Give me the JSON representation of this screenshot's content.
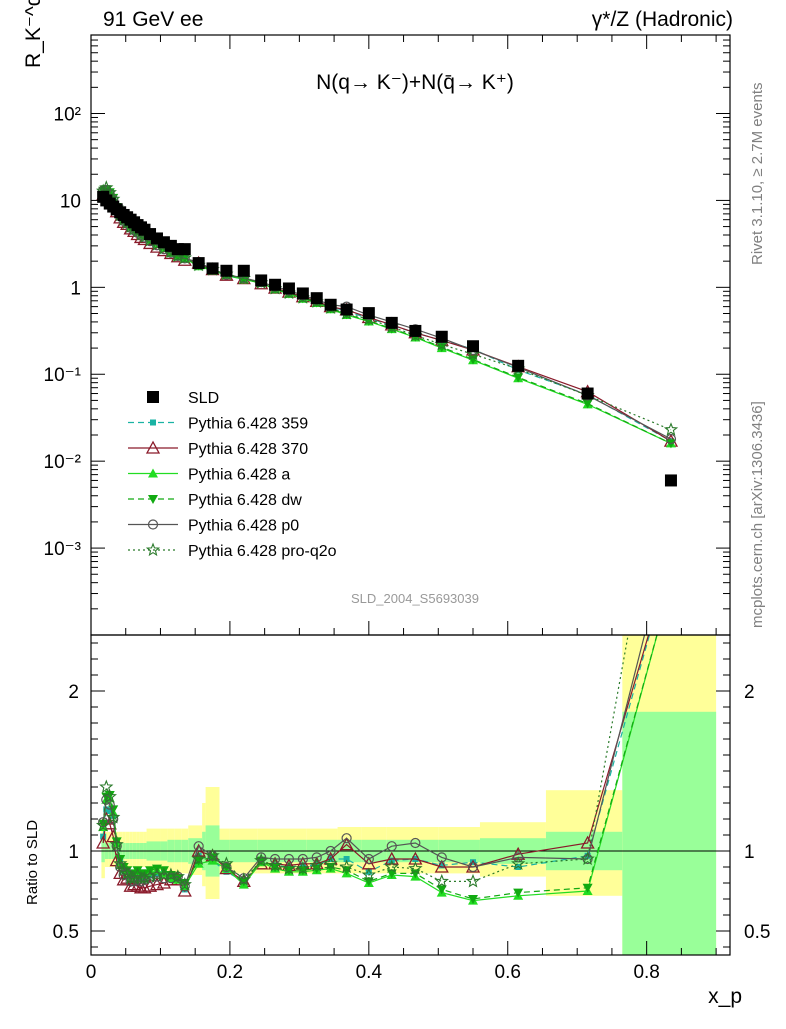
{
  "header": {
    "left_title": "91 GeV ee",
    "right_title": "γ*/Z (Hadronic)",
    "side_text_top": "Rivet 3.1.10, ≥ 2.7M events",
    "side_text_bottom": "mcplots.cern.ch [arXiv:1306.3436]"
  },
  "chart_data": [
    {
      "type": "scatter",
      "panel": "main",
      "title": "N(q→ K⁻)+N(q̄→ K⁺)",
      "ylabel": "R_K⁻^q",
      "yscale": "log",
      "ylim": [
        0.0001,
        800
      ],
      "xlim": [
        0,
        0.92
      ],
      "grid": false,
      "legend_position": "lower-left",
      "yticks": [
        {
          "value": 0.001,
          "label": "10⁻³"
        },
        {
          "value": 0.01,
          "label": "10⁻²"
        },
        {
          "value": 0.1,
          "label": "10⁻¹"
        },
        {
          "value": 1,
          "label": "1"
        },
        {
          "value": 10,
          "label": "10"
        },
        {
          "value": 100,
          "label": "10²"
        }
      ],
      "watermark": "SLD_2004_S5693039",
      "x": [
        0.0175,
        0.022,
        0.027,
        0.032,
        0.037,
        0.042,
        0.047,
        0.052,
        0.057,
        0.062,
        0.067,
        0.072,
        0.077,
        0.085,
        0.095,
        0.105,
        0.115,
        0.125,
        0.135,
        0.155,
        0.175,
        0.195,
        0.22,
        0.245,
        0.265,
        0.285,
        0.305,
        0.325,
        0.345,
        0.368,
        0.4,
        0.433,
        0.467,
        0.505,
        0.55,
        0.615,
        0.715,
        0.835
      ],
      "series": [
        {
          "name": "SLD",
          "color": "#000000",
          "marker": "square",
          "line": "none",
          "values": [
            11.0,
            10.0,
            9.2,
            8.5,
            7.9,
            7.3,
            6.8,
            6.4,
            6.0,
            5.6,
            5.2,
            4.9,
            4.6,
            4.1,
            3.65,
            3.3,
            3.0,
            2.75,
            2.75,
            1.9,
            1.65,
            1.55,
            1.55,
            1.2,
            1.07,
            0.97,
            0.85,
            0.75,
            0.63,
            0.555,
            0.505,
            0.39,
            0.315,
            0.27,
            0.21,
            0.125,
            0.06,
            0.006
          ]
        },
        {
          "name": "Pythia 6.428 359",
          "color": "#1ab3a4",
          "marker": "small-square",
          "line": "dashed",
          "values": [
            12.0,
            12.6,
            11.5,
            10.4,
            8.4,
            6.85,
            6.0,
            5.55,
            5.0,
            4.7,
            4.35,
            4.05,
            3.85,
            3.5,
            3.15,
            2.85,
            2.5,
            2.25,
            2.1,
            1.85,
            1.55,
            1.35,
            1.25,
            1.12,
            0.97,
            0.87,
            0.77,
            0.68,
            0.6,
            0.53,
            0.44,
            0.365,
            0.3,
            0.245,
            0.195,
            0.112,
            0.058,
            0.017
          ]
        },
        {
          "name": "Pythia 6.428 370",
          "color": "#8a1a2a",
          "marker": "open-triangle",
          "line": "solid",
          "values": [
            11.6,
            12.0,
            10.8,
            9.3,
            7.4,
            6.3,
            5.6,
            5.3,
            4.7,
            4.4,
            4.05,
            3.75,
            3.55,
            3.2,
            2.9,
            2.65,
            2.45,
            2.25,
            2.05,
            1.9,
            1.6,
            1.38,
            1.26,
            1.1,
            0.98,
            0.88,
            0.78,
            0.69,
            0.6,
            0.55,
            0.45,
            0.37,
            0.3,
            0.245,
            0.19,
            0.122,
            0.063,
            0.017
          ]
        },
        {
          "name": "Pythia 6.428 a",
          "color": "#22dd22",
          "marker": "filled-triangle",
          "line": "solid",
          "values": [
            12.7,
            13.2,
            12.2,
            10.5,
            8.3,
            6.8,
            6.05,
            5.6,
            5.05,
            4.75,
            4.5,
            4.15,
            3.9,
            3.55,
            3.2,
            2.85,
            2.5,
            2.25,
            2.15,
            1.75,
            1.55,
            1.38,
            1.23,
            1.12,
            0.95,
            0.84,
            0.74,
            0.66,
            0.56,
            0.48,
            0.405,
            0.33,
            0.265,
            0.2,
            0.145,
            0.09,
            0.045,
            0.016
          ]
        },
        {
          "name": "Pythia 6.428 dw",
          "color": "#11aa11",
          "marker": "filled-triangle-down",
          "line": "dashed",
          "values": [
            12.9,
            13.4,
            12.4,
            10.7,
            8.4,
            6.9,
            6.1,
            5.65,
            5.1,
            4.8,
            4.55,
            4.2,
            3.95,
            3.6,
            3.25,
            2.9,
            2.55,
            2.28,
            2.2,
            1.78,
            1.58,
            1.4,
            1.25,
            1.13,
            0.96,
            0.85,
            0.75,
            0.67,
            0.57,
            0.49,
            0.41,
            0.335,
            0.27,
            0.205,
            0.148,
            0.092,
            0.046,
            0.016
          ]
        },
        {
          "name": "Pythia 6.428 p0",
          "color": "#555555",
          "marker": "open-circle",
          "line": "solid",
          "values": [
            13.0,
            13.2,
            11.9,
            10.2,
            8.1,
            6.6,
            5.8,
            5.5,
            4.85,
            4.55,
            4.25,
            3.95,
            3.75,
            3.4,
            3.05,
            2.75,
            2.5,
            2.3,
            2.15,
            1.95,
            1.6,
            1.4,
            1.28,
            1.15,
            1.02,
            0.92,
            0.81,
            0.72,
            0.63,
            0.6,
            0.48,
            0.4,
            0.33,
            0.26,
            0.19,
            0.12,
            0.057,
            0.018
          ]
        },
        {
          "name": "Pythia 6.428 pro-q2o",
          "color": "#2a7a2a",
          "marker": "open-star",
          "line": "dotted",
          "values": [
            12.8,
            14.0,
            12.3,
            10.3,
            8.2,
            6.75,
            5.95,
            5.5,
            4.95,
            4.65,
            4.4,
            4.05,
            3.8,
            3.45,
            3.1,
            2.8,
            2.55,
            2.3,
            2.18,
            1.8,
            1.6,
            1.42,
            1.27,
            1.13,
            0.97,
            0.86,
            0.76,
            0.68,
            0.58,
            0.5,
            0.43,
            0.35,
            0.28,
            0.22,
            0.17,
            0.115,
            0.057,
            0.023
          ]
        }
      ]
    },
    {
      "type": "line",
      "panel": "ratio",
      "ylabel": "Ratio to SLD",
      "xlabel": "x_p",
      "ylim": [
        0.35,
        2.35
      ],
      "xlim": [
        0,
        0.92
      ],
      "yticks": [
        {
          "value": 0.5,
          "label": "0.5"
        },
        {
          "value": 1,
          "label": "1"
        },
        {
          "value": 2,
          "label": "2"
        }
      ],
      "xticks": [
        {
          "value": 0,
          "label": "0"
        },
        {
          "value": 0.2,
          "label": "0.2"
        },
        {
          "value": 0.4,
          "label": "0.4"
        },
        {
          "value": 0.6,
          "label": "0.6"
        },
        {
          "value": 0.8,
          "label": "0.8"
        }
      ],
      "band_colors": {
        "outer": "#ffff99",
        "inner": "#99ff99"
      },
      "band_outer_x": [
        0.015,
        0.02,
        0.025,
        0.03,
        0.035,
        0.04,
        0.045,
        0.05,
        0.055,
        0.06,
        0.065,
        0.07,
        0.075,
        0.08,
        0.09,
        0.1,
        0.11,
        0.12,
        0.13,
        0.14,
        0.16,
        0.165,
        0.185,
        0.2,
        0.24,
        0.275,
        0.31,
        0.355,
        0.39,
        0.425,
        0.46,
        0.5,
        0.56,
        0.655,
        0.765,
        0.9
      ],
      "band_outer_lo": [
        0.83,
        0.9,
        0.9,
        0.9,
        0.9,
        0.9,
        0.9,
        0.9,
        0.9,
        0.9,
        0.9,
        0.9,
        0.9,
        0.88,
        0.88,
        0.88,
        0.86,
        0.86,
        0.86,
        0.85,
        0.78,
        0.7,
        0.86,
        0.86,
        0.86,
        0.86,
        0.86,
        0.86,
        0.86,
        0.86,
        0.86,
        0.86,
        0.84,
        0.72,
        0.35
      ],
      "band_outer_hi": [
        1.17,
        1.12,
        1.12,
        1.12,
        1.12,
        1.12,
        1.12,
        1.12,
        1.12,
        1.12,
        1.12,
        1.12,
        1.12,
        1.14,
        1.14,
        1.14,
        1.14,
        1.14,
        1.14,
        1.16,
        1.3,
        1.4,
        1.14,
        1.14,
        1.14,
        1.14,
        1.14,
        1.15,
        1.15,
        1.15,
        1.15,
        1.15,
        1.18,
        1.38,
        2.35
      ],
      "band_inner_lo": [
        0.93,
        0.95,
        0.95,
        0.95,
        0.95,
        0.95,
        0.95,
        0.95,
        0.95,
        0.95,
        0.95,
        0.95,
        0.95,
        0.94,
        0.94,
        0.94,
        0.93,
        0.93,
        0.93,
        0.92,
        0.88,
        0.84,
        0.93,
        0.93,
        0.93,
        0.93,
        0.93,
        0.93,
        0.93,
        0.93,
        0.93,
        0.93,
        0.92,
        0.88,
        0.35
      ],
      "band_inner_hi": [
        1.07,
        1.05,
        1.05,
        1.05,
        1.05,
        1.05,
        1.05,
        1.05,
        1.05,
        1.05,
        1.05,
        1.05,
        1.05,
        1.06,
        1.06,
        1.06,
        1.07,
        1.07,
        1.07,
        1.08,
        1.12,
        1.16,
        1.07,
        1.07,
        1.07,
        1.07,
        1.07,
        1.07,
        1.07,
        1.07,
        1.07,
        1.07,
        1.08,
        1.12,
        1.87
      ],
      "ratio_x": [
        0.0175,
        0.022,
        0.027,
        0.032,
        0.037,
        0.042,
        0.047,
        0.052,
        0.057,
        0.062,
        0.067,
        0.072,
        0.077,
        0.085,
        0.095,
        0.105,
        0.115,
        0.125,
        0.135,
        0.155,
        0.175,
        0.195,
        0.22,
        0.245,
        0.265,
        0.285,
        0.305,
        0.325,
        0.345,
        0.368,
        0.4,
        0.433,
        0.467,
        0.505,
        0.55,
        0.615,
        0.715,
        0.835
      ],
      "series": [
        {
          "name": "Pythia 6.428 359",
          "values": [
            1.09,
            1.26,
            1.25,
            1.22,
            1.06,
            0.94,
            0.88,
            0.87,
            0.83,
            0.84,
            0.84,
            0.83,
            0.84,
            0.85,
            0.86,
            0.86,
            0.83,
            0.82,
            0.76,
            0.97,
            0.94,
            0.87,
            0.81,
            0.93,
            0.91,
            0.9,
            0.91,
            0.91,
            0.95,
            0.95,
            0.87,
            0.94,
            0.95,
            0.91,
            0.93,
            0.9,
            0.97,
            2.83
          ]
        },
        {
          "name": "Pythia 6.428 370",
          "values": [
            1.05,
            1.2,
            1.17,
            1.09,
            0.94,
            0.86,
            0.82,
            0.83,
            0.78,
            0.79,
            0.78,
            0.77,
            0.77,
            0.78,
            0.79,
            0.8,
            0.82,
            0.82,
            0.75,
            1.0,
            0.97,
            0.89,
            0.81,
            0.92,
            0.92,
            0.91,
            0.92,
            0.92,
            0.95,
            1.04,
            0.92,
            0.95,
            0.95,
            0.9,
            0.9,
            0.98,
            1.05,
            2.83
          ]
        },
        {
          "name": "Pythia 6.428 a",
          "values": [
            1.15,
            1.32,
            1.33,
            1.24,
            1.05,
            0.93,
            0.89,
            0.88,
            0.84,
            0.85,
            0.87,
            0.85,
            0.85,
            0.87,
            0.88,
            0.86,
            0.83,
            0.82,
            0.78,
            0.92,
            0.94,
            0.89,
            0.79,
            0.93,
            0.89,
            0.87,
            0.87,
            0.88,
            0.89,
            0.86,
            0.8,
            0.85,
            0.84,
            0.74,
            0.69,
            0.72,
            0.75,
            2.67
          ]
        },
        {
          "name": "Pythia 6.428 dw",
          "values": [
            1.17,
            1.34,
            1.35,
            1.26,
            1.06,
            0.95,
            0.9,
            0.88,
            0.85,
            0.86,
            0.88,
            0.86,
            0.86,
            0.88,
            0.89,
            0.88,
            0.85,
            0.83,
            0.8,
            0.94,
            0.96,
            0.9,
            0.81,
            0.94,
            0.9,
            0.88,
            0.88,
            0.89,
            0.9,
            0.88,
            0.81,
            0.86,
            0.86,
            0.76,
            0.7,
            0.74,
            0.77,
            2.67
          ]
        },
        {
          "name": "Pythia 6.428 p0",
          "values": [
            1.18,
            1.32,
            1.29,
            1.2,
            1.03,
            0.9,
            0.85,
            0.86,
            0.81,
            0.81,
            0.82,
            0.81,
            0.82,
            0.83,
            0.84,
            0.83,
            0.83,
            0.84,
            0.78,
            1.03,
            0.97,
            0.9,
            0.83,
            0.96,
            0.95,
            0.95,
            0.95,
            0.96,
            1.0,
            1.08,
            0.95,
            1.03,
            1.05,
            0.96,
            0.9,
            0.96,
            0.95,
            3.0
          ]
        },
        {
          "name": "Pythia 6.428 pro-q2o",
          "values": [
            1.16,
            1.4,
            1.34,
            1.21,
            1.04,
            0.92,
            0.88,
            0.86,
            0.83,
            0.83,
            0.85,
            0.83,
            0.83,
            0.84,
            0.85,
            0.85,
            0.85,
            0.84,
            0.79,
            0.95,
            0.97,
            0.92,
            0.82,
            0.94,
            0.91,
            0.89,
            0.89,
            0.91,
            0.92,
            0.9,
            0.85,
            0.9,
            0.89,
            0.81,
            0.81,
            0.92,
            0.95,
            3.83
          ]
        }
      ]
    }
  ]
}
